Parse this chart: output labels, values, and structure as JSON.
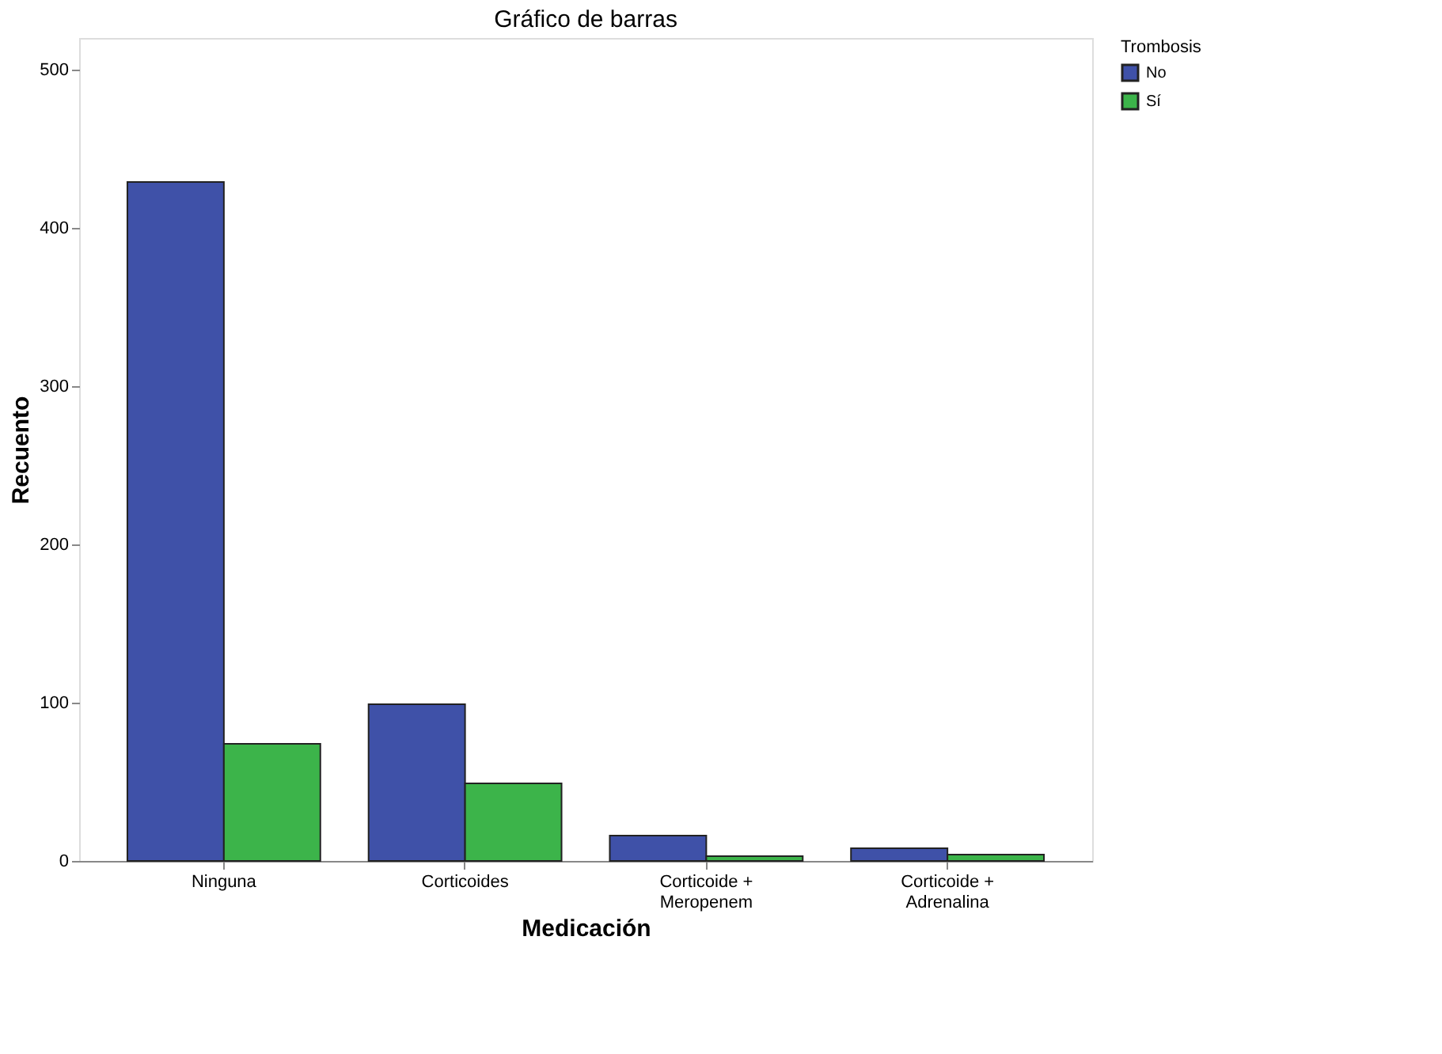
{
  "chart_data": {
    "type": "bar",
    "title": "Gráfico de barras",
    "xlabel": "Medicación",
    "ylabel": "Recuento",
    "legend_title": "Trombosis",
    "categories": [
      "Ninguna",
      "Corticoides",
      "Corticoide + Meropenem",
      "Corticoide + Adrenalina"
    ],
    "series": [
      {
        "name": "No",
        "color": "#3f51a8",
        "values": [
          429,
          99,
          16,
          8
        ]
      },
      {
        "name": "Sí",
        "color": "#3cb44a",
        "values": [
          74,
          49,
          3,
          4
        ]
      }
    ],
    "ylim": [
      0,
      520
    ],
    "yticks": [
      0,
      100,
      200,
      300,
      400,
      500
    ],
    "grid": false,
    "legend": "top right"
  }
}
